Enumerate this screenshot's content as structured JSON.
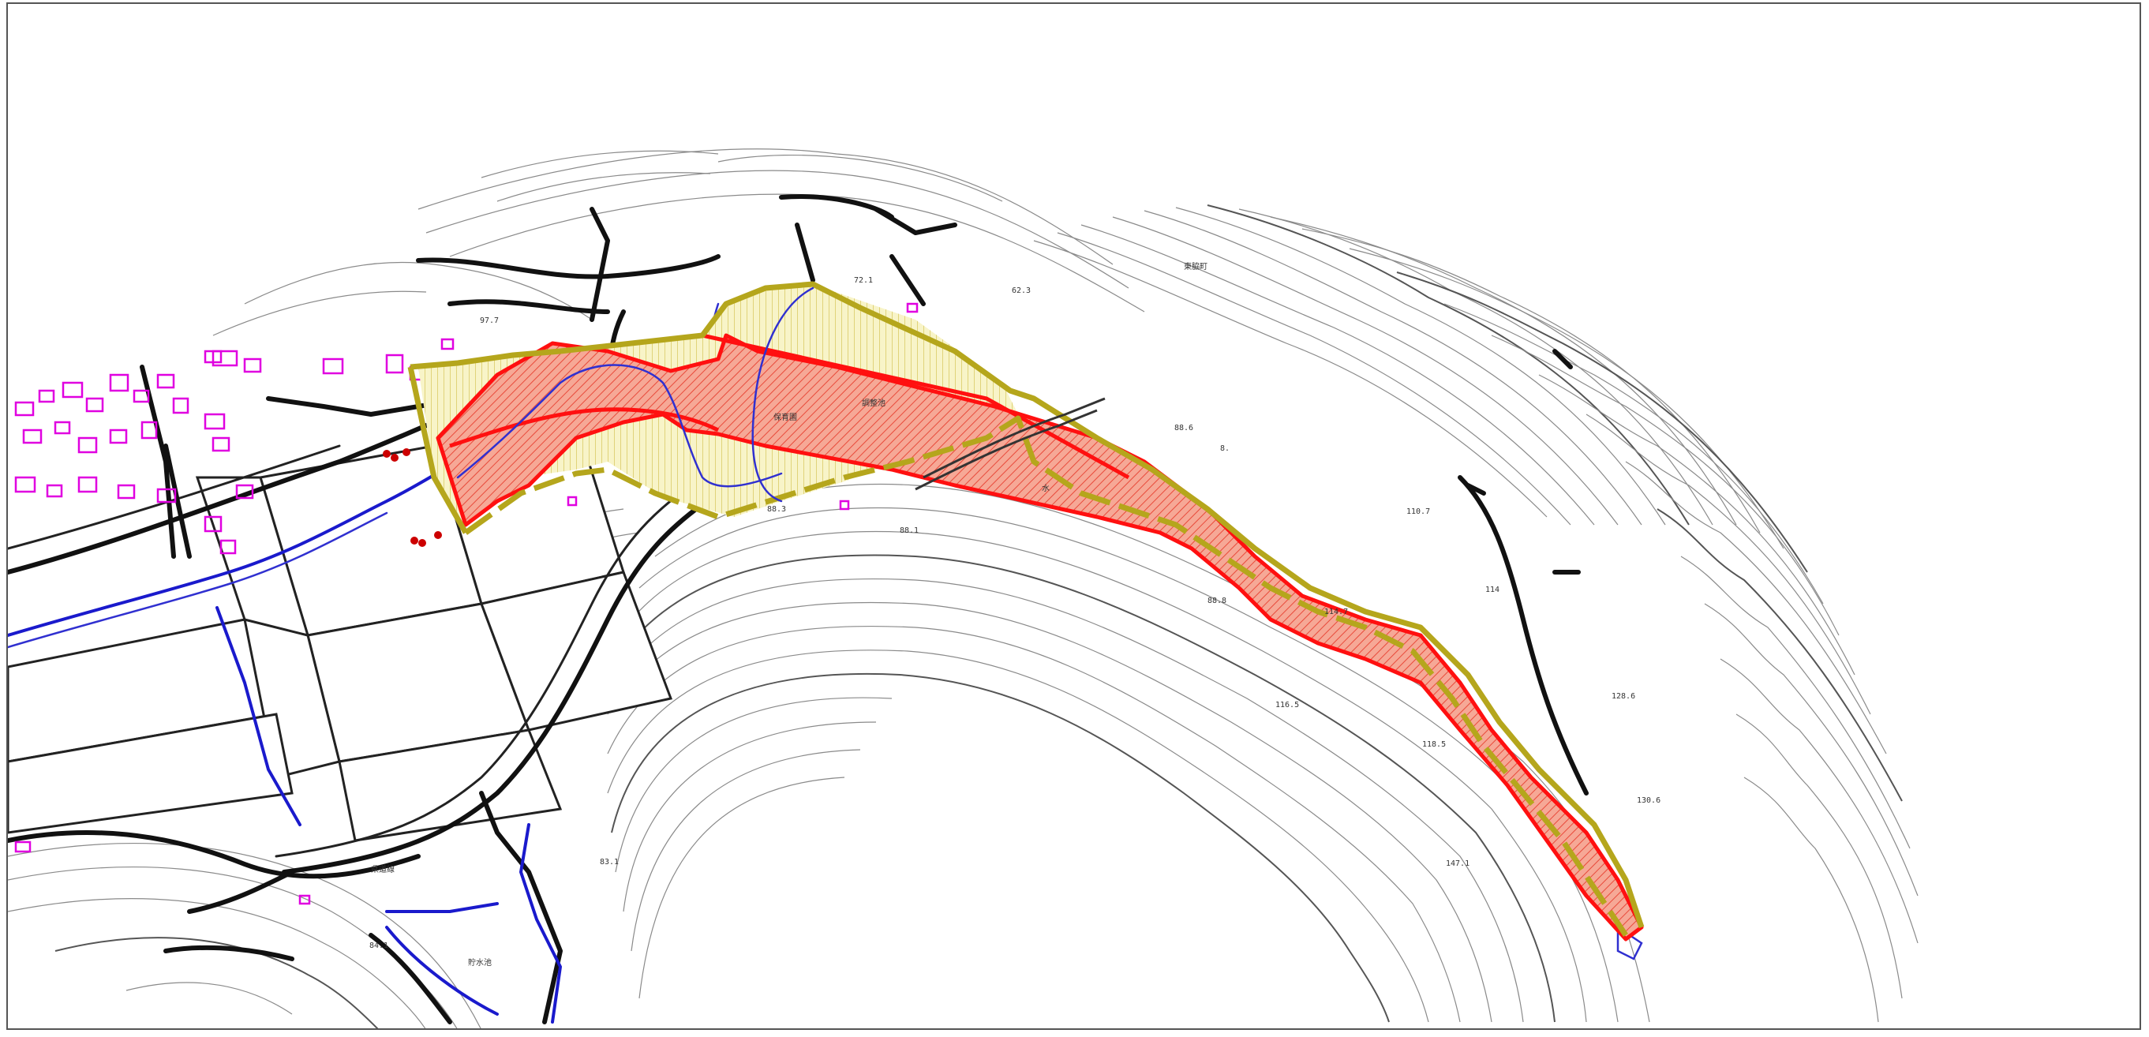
{
  "map": {
    "labels": {
      "town": "東脇町",
      "elev_97_7": "97.7",
      "elev_72_1": "72.1",
      "elev_62_3": "62.3",
      "elev_88_6": "88.6",
      "elev_110_7": "110.7",
      "elev_114": "114",
      "elev_128_6": "128.6",
      "elev_116_5": "116.5",
      "elev_118_5": "118.5",
      "elev_130_6": "130.6",
      "elev_147_1": "147.1",
      "elev_88_1": "88.1",
      "elev_88_3": "88.3",
      "elev_83_1": "83.1",
      "elev_84_1": "84.1",
      "elev_88_8": "88.8",
      "elev_8": "8.",
      "elev_114_7": "114.7",
      "area_a": "保育園",
      "area_b": "調整池",
      "area_c": "貯水池",
      "area_d": "水",
      "road_name": "県道線"
    },
    "colors": {
      "contour": "#8a8a8a",
      "road": "#111111",
      "water": "#1a1acc",
      "building": "#e000e0",
      "boundary": "#b5a61c",
      "hazard_zone": "#ff1010",
      "hazard_fill": "#f4a090",
      "caution_fill": "#f6f0b0"
    }
  }
}
